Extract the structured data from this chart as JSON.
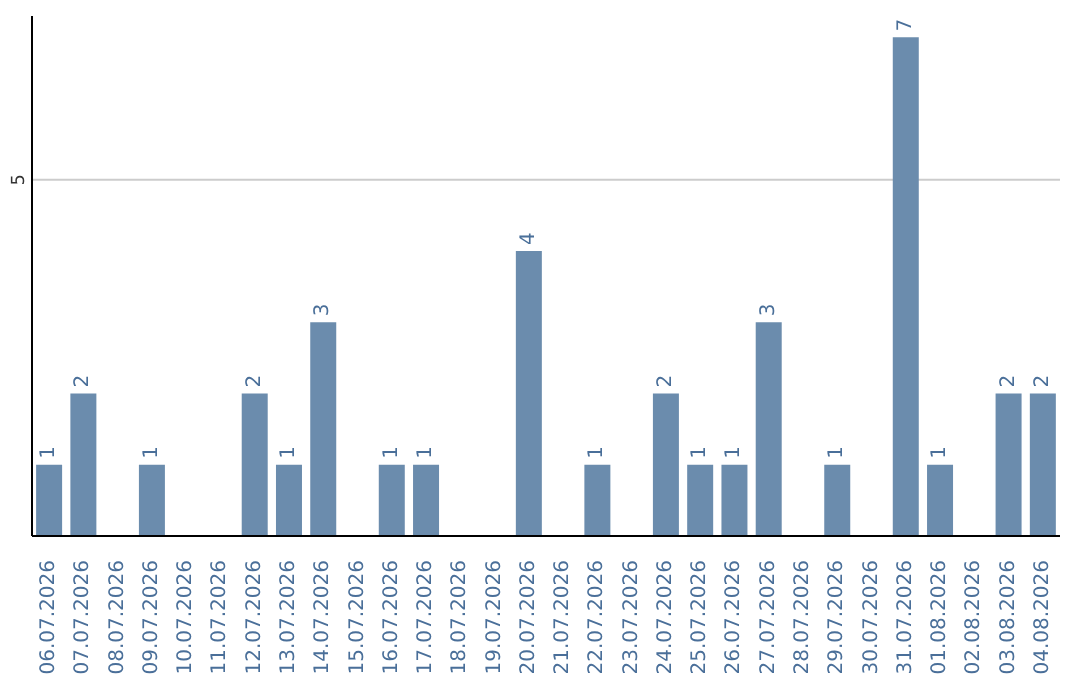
{
  "chart_data": {
    "type": "bar",
    "categories": [
      "06.07.2026",
      "07.07.2026",
      "08.07.2026",
      "09.07.2026",
      "10.07.2026",
      "11.07.2026",
      "12.07.2026",
      "13.07.2026",
      "14.07.2026",
      "15.07.2026",
      "16.07.2026",
      "17.07.2026",
      "18.07.2026",
      "19.07.2026",
      "20.07.2026",
      "21.07.2026",
      "22.07.2026",
      "23.07.2026",
      "24.07.2026",
      "25.07.2026",
      "26.07.2026",
      "27.07.2026",
      "28.07.2026",
      "29.07.2026",
      "30.07.2026",
      "31.07.2026",
      "01.08.2026",
      "02.08.2026",
      "03.08.2026",
      "04.08.2026"
    ],
    "values": [
      1,
      2,
      0,
      1,
      0,
      0,
      2,
      1,
      3,
      0,
      1,
      1,
      0,
      0,
      4,
      0,
      1,
      0,
      2,
      1,
      1,
      3,
      0,
      1,
      0,
      7,
      1,
      0,
      2,
      2
    ],
    "value_labels": [
      "1",
      "2",
      null,
      "1",
      null,
      null,
      "2",
      "1",
      "3",
      null,
      "1",
      "1",
      null,
      null,
      "4",
      null,
      "1",
      null,
      "2",
      "1",
      "1",
      "3",
      null,
      "1",
      null,
      "7",
      "1",
      null,
      "2",
      "2"
    ],
    "color": "#6b8cad",
    "ylim": [
      0,
      7.3
    ],
    "yticks": [
      5
    ],
    "grid": "y"
  }
}
